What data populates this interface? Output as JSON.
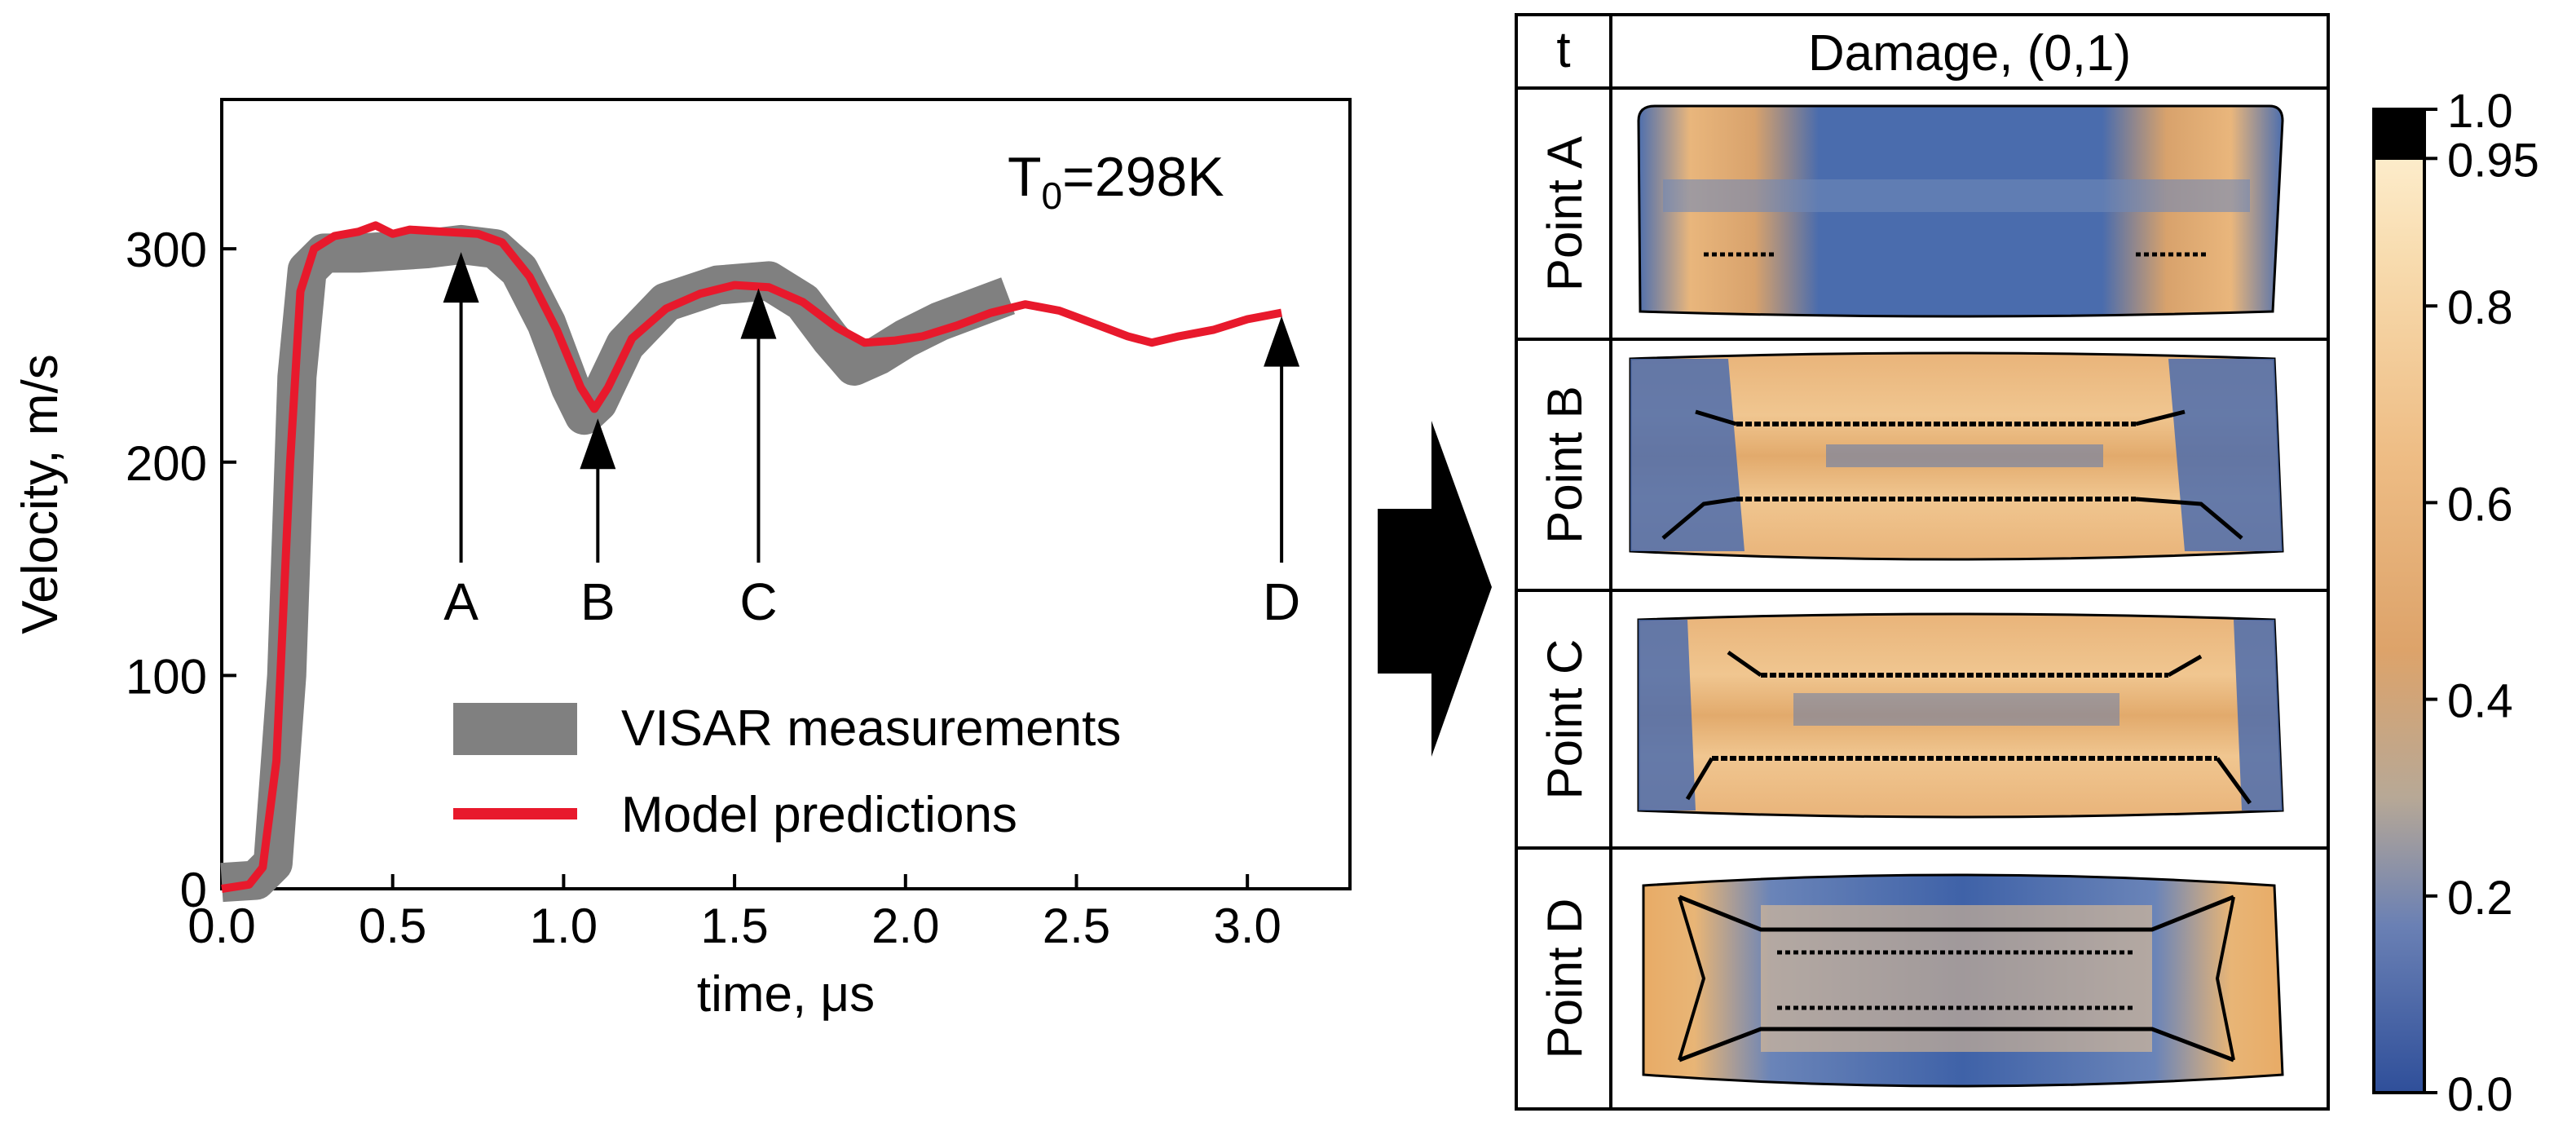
{
  "chart_data": [
    {
      "type": "line",
      "xlabel": "time, μs",
      "ylabel": "Velocity, m/s",
      "xlim": [
        0.0,
        3.3
      ],
      "ylim": [
        0,
        370
      ],
      "xticks": [
        0.0,
        0.5,
        1.0,
        1.5,
        2.0,
        2.5,
        3.0
      ],
      "xtick_labels": [
        "0.0",
        "0.5",
        "1.0",
        "1.5",
        "2.0",
        "2.5",
        "3.0"
      ],
      "yticks": [
        0,
        100,
        200,
        300
      ],
      "ytick_labels": [
        "0",
        "100",
        "200",
        "300"
      ],
      "annotation": {
        "main": "T",
        "sub": "0",
        "rest": "=298K"
      },
      "legend": {
        "placement": "lower-right",
        "entries": [
          "VISAR measurements",
          "Model predictions"
        ]
      },
      "series": [
        {
          "name": "VISAR measurements",
          "color": "#808080",
          "points": [
            [
              0.0,
              3
            ],
            [
              0.1,
              4
            ],
            [
              0.15,
              12
            ],
            [
              0.19,
              100
            ],
            [
              0.22,
              240
            ],
            [
              0.25,
              290
            ],
            [
              0.3,
              298
            ],
            [
              0.4,
              298
            ],
            [
              0.5,
              299
            ],
            [
              0.6,
              300
            ],
            [
              0.7,
              302
            ],
            [
              0.8,
              300
            ],
            [
              0.87,
              290
            ],
            [
              0.95,
              265
            ],
            [
              1.02,
              235
            ],
            [
              1.06,
              222
            ],
            [
              1.1,
              228
            ],
            [
              1.18,
              255
            ],
            [
              1.3,
              275
            ],
            [
              1.45,
              283
            ],
            [
              1.6,
              285
            ],
            [
              1.7,
              275
            ],
            [
              1.78,
              258
            ],
            [
              1.85,
              245
            ],
            [
              1.92,
              250
            ],
            [
              2.0,
              258
            ],
            [
              2.1,
              266
            ],
            [
              2.2,
              272
            ],
            [
              2.3,
              278
            ]
          ]
        },
        {
          "name": "Model predictions",
          "color": "#e8192c",
          "points": [
            [
              0.0,
              0
            ],
            [
              0.08,
              2
            ],
            [
              0.12,
              10
            ],
            [
              0.16,
              60
            ],
            [
              0.2,
              200
            ],
            [
              0.23,
              280
            ],
            [
              0.27,
              300
            ],
            [
              0.33,
              306
            ],
            [
              0.4,
              308
            ],
            [
              0.45,
              311
            ],
            [
              0.5,
              307
            ],
            [
              0.55,
              309
            ],
            [
              0.65,
              308
            ],
            [
              0.75,
              307
            ],
            [
              0.82,
              303
            ],
            [
              0.9,
              287
            ],
            [
              0.98,
              262
            ],
            [
              1.05,
              235
            ],
            [
              1.09,
              225
            ],
            [
              1.13,
              235
            ],
            [
              1.2,
              258
            ],
            [
              1.3,
              272
            ],
            [
              1.4,
              279
            ],
            [
              1.5,
              283
            ],
            [
              1.6,
              282
            ],
            [
              1.7,
              275
            ],
            [
              1.8,
              263
            ],
            [
              1.88,
              256
            ],
            [
              1.97,
              257
            ],
            [
              2.05,
              259
            ],
            [
              2.15,
              264
            ],
            [
              2.25,
              270
            ],
            [
              2.35,
              274
            ],
            [
              2.45,
              271
            ],
            [
              2.55,
              265
            ],
            [
              2.65,
              259
            ],
            [
              2.72,
              256
            ],
            [
              2.8,
              259
            ],
            [
              2.9,
              262
            ],
            [
              3.0,
              267
            ],
            [
              3.1,
              270
            ]
          ]
        }
      ],
      "markers": [
        {
          "label": "A",
          "x": 0.7,
          "y": 300
        },
        {
          "label": "B",
          "x": 1.1,
          "y": 222
        },
        {
          "label": "C",
          "x": 1.57,
          "y": 283
        },
        {
          "label": "D",
          "x": 3.1,
          "y": 270
        }
      ]
    },
    {
      "type": "heatmap",
      "header": {
        "col1": "t",
        "col2": "Damage, (0,1)"
      },
      "rows": [
        "Point A",
        "Point B",
        "Point C",
        "Point D"
      ],
      "colorbar": {
        "range": [
          0.0,
          1.0
        ],
        "ticks": [
          0.0,
          0.2,
          0.4,
          0.6,
          0.8,
          0.95,
          1.0
        ],
        "tick_labels": [
          "0.0",
          "0.2",
          "0.4",
          "0.6",
          "0.8",
          "0.95",
          "1.0"
        ],
        "colors": {
          "low": "#3a5ea8",
          "mid": "#e6a862",
          "high": "#fff4d6",
          "max": "#000000"
        }
      }
    }
  ]
}
